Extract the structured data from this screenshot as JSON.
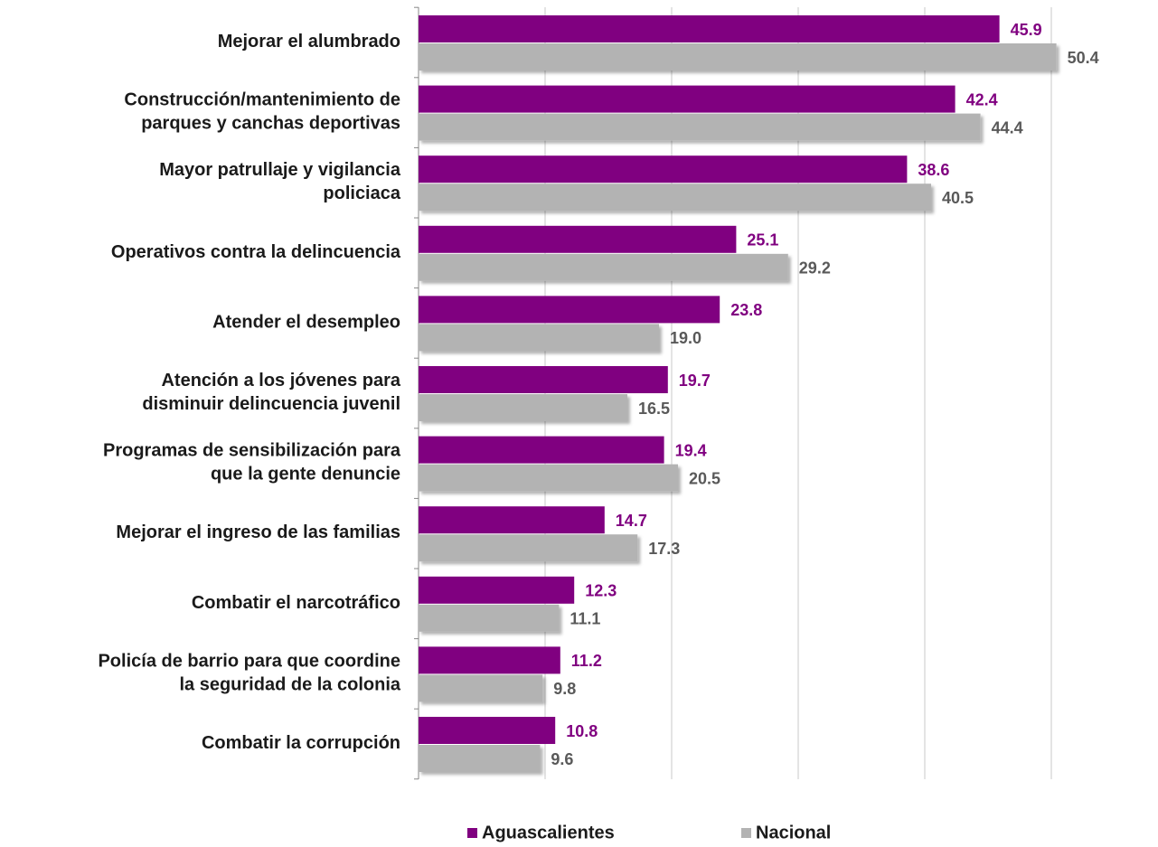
{
  "chart_data": {
    "type": "hbar",
    "categories": [
      [
        "Mejorar el alumbrado"
      ],
      [
        "Construcción/mantenimiento de",
        "parques y canchas deportivas"
      ],
      [
        "Mayor patrullaje y vigilancia",
        "policiaca"
      ],
      [
        "Operativos contra la delincuencia"
      ],
      [
        "Atender el desempleo"
      ],
      [
        "Atención a los jóvenes para",
        "disminuir delincuencia juvenil"
      ],
      [
        "Programas de sensibilización para",
        "que la gente denuncie"
      ],
      [
        "Mejorar el ingreso de las familias"
      ],
      [
        "Combatir el narcotráfico"
      ],
      [
        "Policía de barrio para que coordine",
        "la seguridad de la colonia"
      ],
      [
        "Combatir la corrupción"
      ]
    ],
    "series": [
      {
        "name": "Aguascalientes",
        "color": "#800080",
        "label_color": "#800080",
        "values": [
          45.9,
          42.4,
          38.6,
          25.1,
          23.8,
          19.7,
          19.4,
          14.7,
          12.3,
          11.2,
          10.8
        ],
        "value_labels": [
          "45.9",
          "42.4",
          "38.6",
          "25.1",
          "23.8",
          "19.7",
          "19.4",
          "14.7",
          "12.3",
          "11.2",
          "10.8"
        ]
      },
      {
        "name": "Nacional",
        "color": "#b3b3b3",
        "label_color": "#595959",
        "values": [
          50.4,
          44.4,
          40.5,
          29.2,
          19.0,
          16.5,
          20.5,
          17.3,
          11.1,
          9.8,
          9.6
        ],
        "value_labels": [
          "50.4",
          "44.4",
          "40.5",
          "29.2",
          "19.0",
          "16.5",
          "20.5",
          "17.3",
          "11.1",
          "9.8",
          "9.6"
        ]
      }
    ],
    "xlim": [
      0,
      50
    ],
    "xticks": [
      0,
      10,
      20,
      30,
      40,
      50
    ],
    "grid": true,
    "legend": "bottom"
  }
}
